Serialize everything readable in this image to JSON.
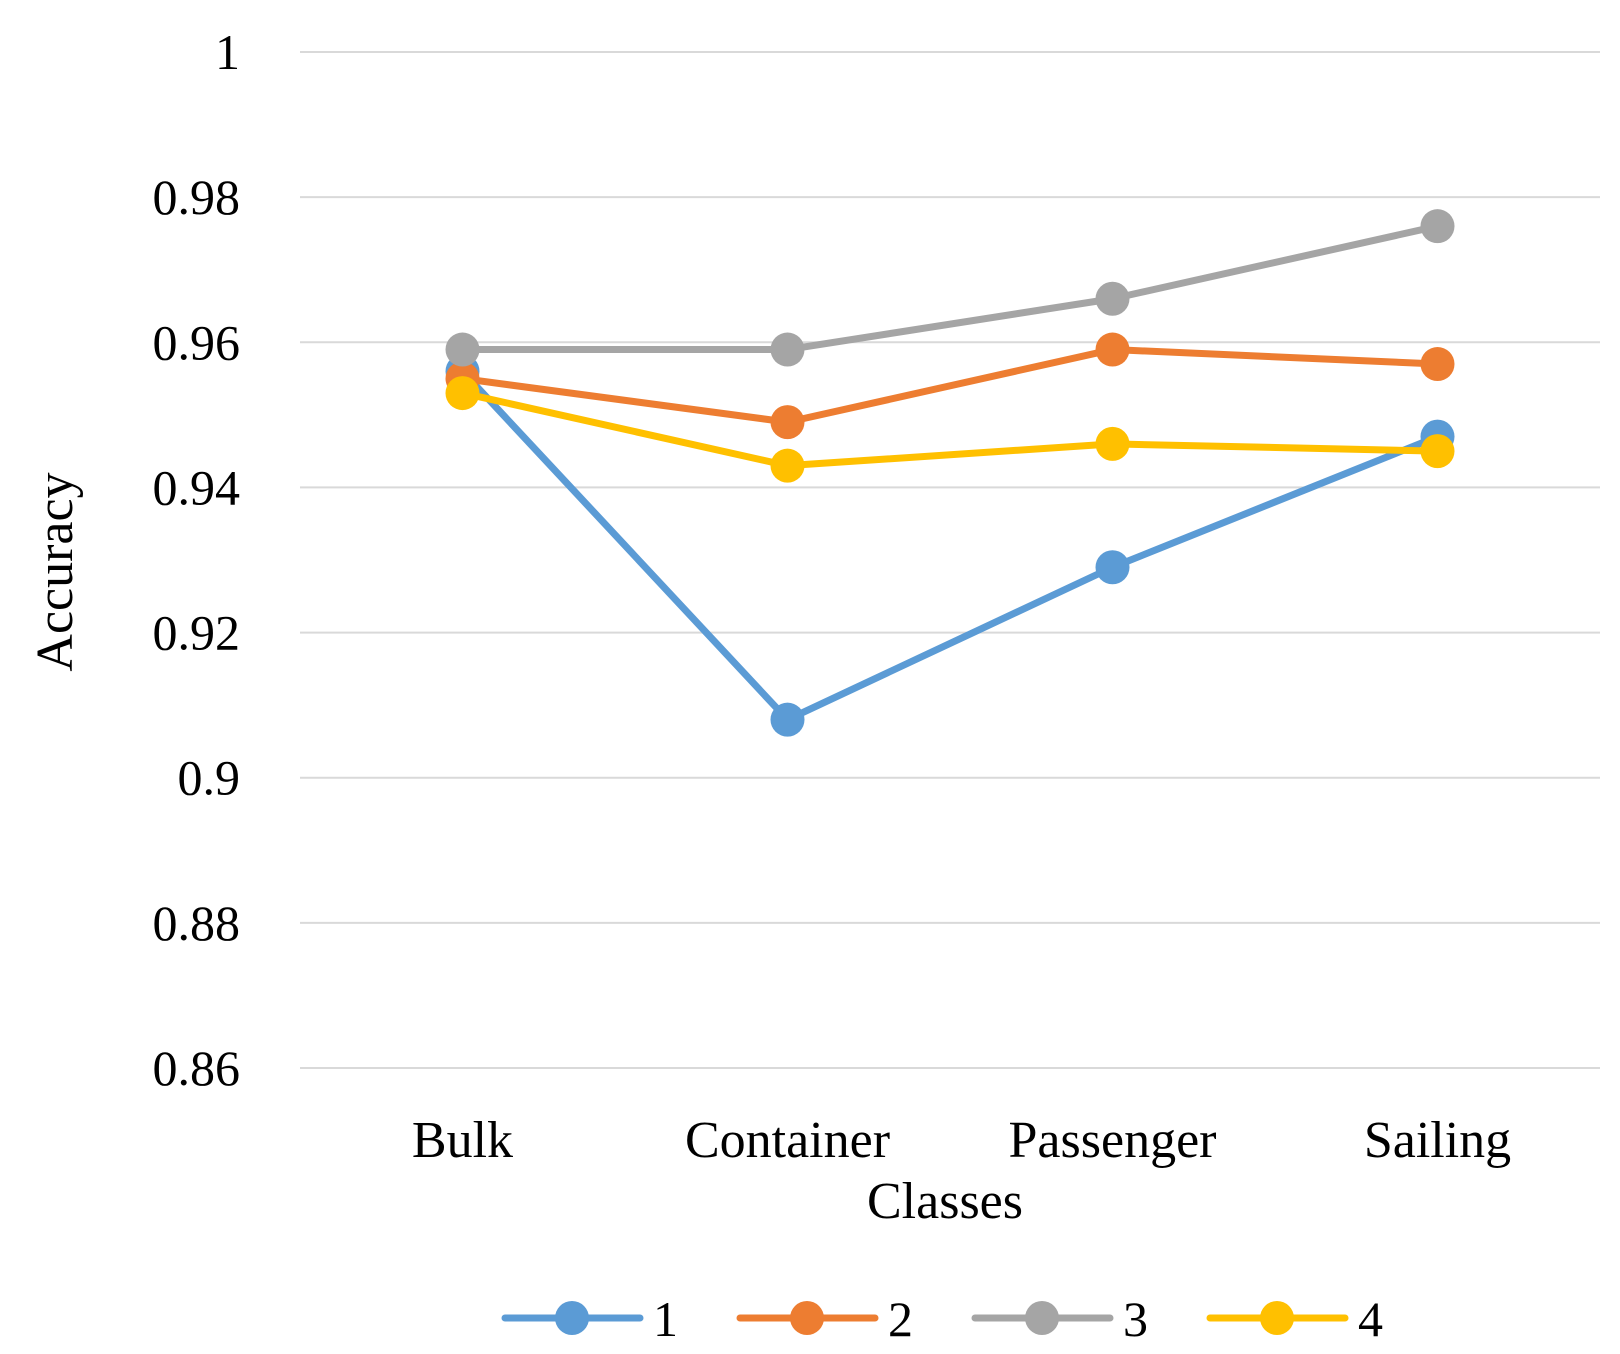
{
  "chart_data": {
    "type": "line",
    "title": "",
    "xlabel": "Classes",
    "ylabel": "Accuracy",
    "categories": [
      "Bulk",
      "Container",
      "Passenger",
      "Sailing"
    ],
    "ylim": [
      0.86,
      1
    ],
    "yticks": [
      0.86,
      0.88,
      0.9,
      0.92,
      0.94,
      0.96,
      0.98,
      1
    ],
    "ytick_labels": [
      "0.86",
      "0.88",
      "0.9",
      "0.92",
      "0.94",
      "0.96",
      "0.98",
      "1"
    ],
    "grid": true,
    "legend_position": "bottom",
    "series": [
      {
        "name": "1",
        "color": "#5b9bd5",
        "values": [
          0.956,
          0.908,
          0.929,
          0.947
        ]
      },
      {
        "name": "2",
        "color": "#ed7d31",
        "values": [
          0.955,
          0.949,
          0.959,
          0.957
        ]
      },
      {
        "name": "3",
        "color": "#a5a5a5",
        "values": [
          0.959,
          0.959,
          0.966,
          0.976
        ]
      },
      {
        "name": "4",
        "color": "#ffc000",
        "values": [
          0.953,
          0.943,
          0.946,
          0.945
        ]
      }
    ]
  }
}
